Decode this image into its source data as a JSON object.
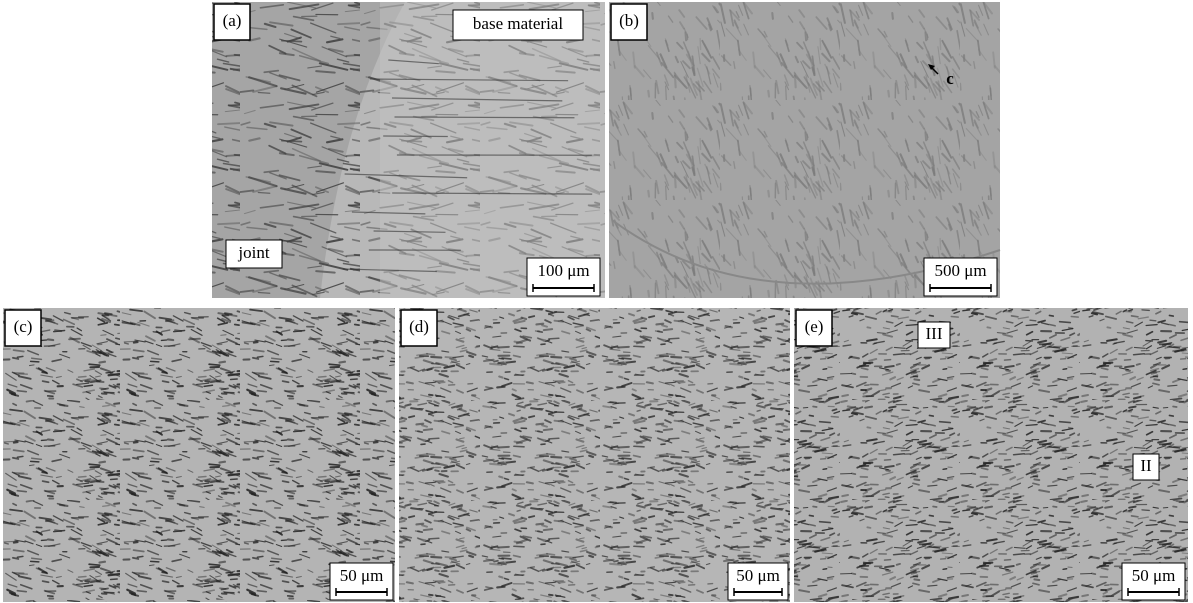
{
  "panels": [
    {
      "label": "(a)",
      "annotations": [
        "base material",
        "joint"
      ],
      "scale": "100 μm"
    },
    {
      "label": "(b)",
      "annotations": [
        "c"
      ],
      "scale": "500 μm"
    },
    {
      "label": "(c)",
      "scale": "50 μm"
    },
    {
      "label": "(d)",
      "scale": "50 μm"
    },
    {
      "label": "(e)",
      "annotations": [
        "III",
        "II"
      ],
      "scale": "50 μm"
    }
  ]
}
